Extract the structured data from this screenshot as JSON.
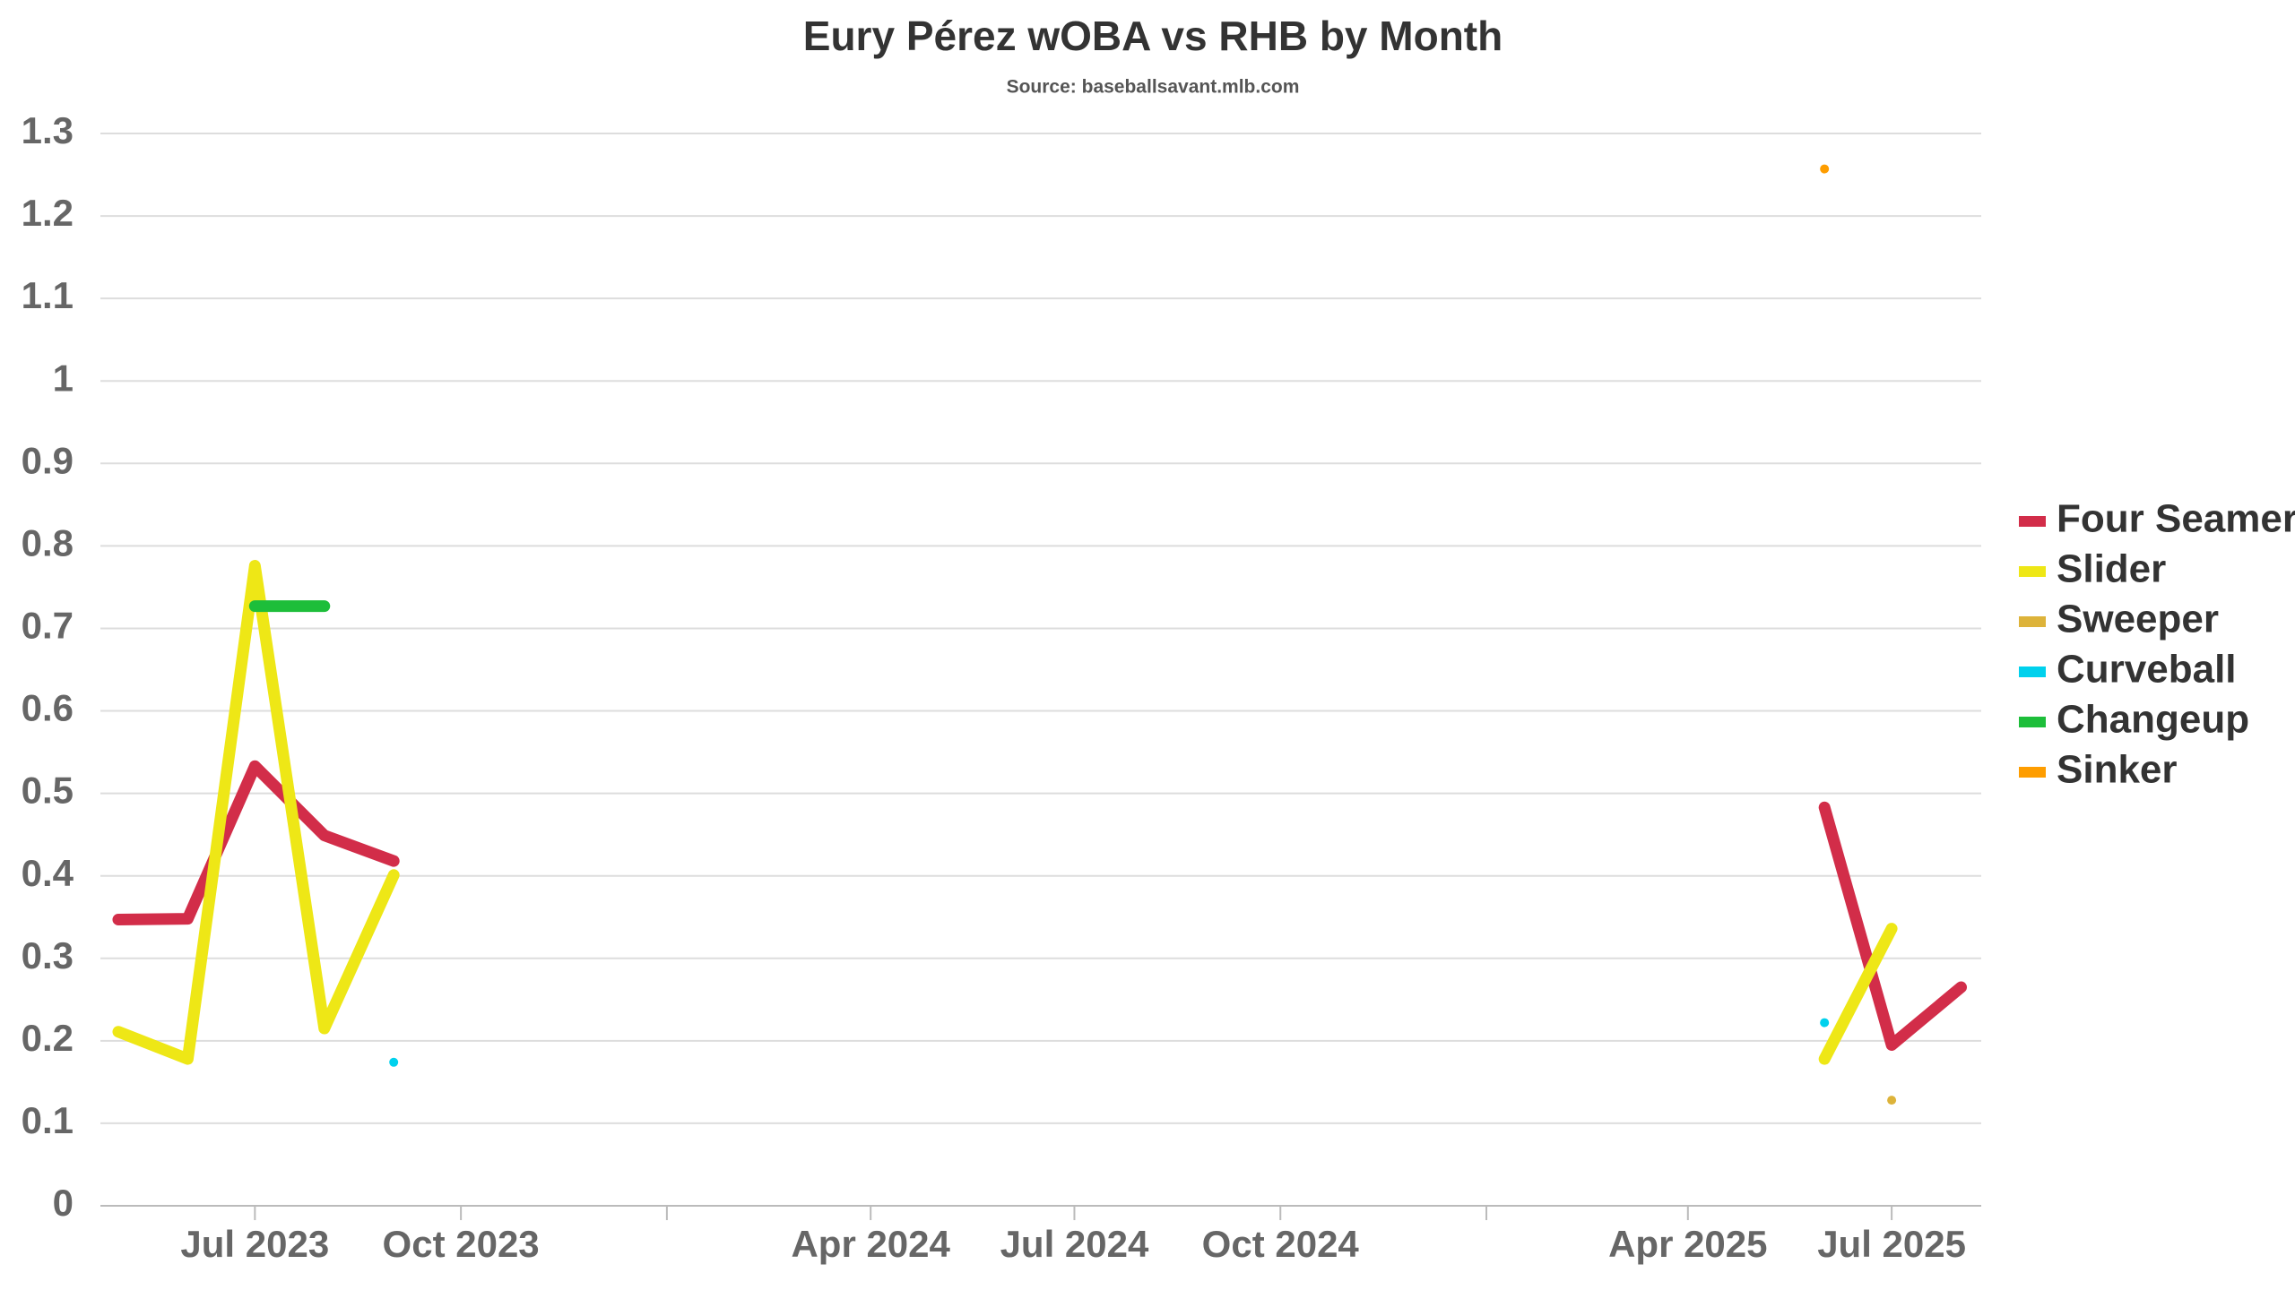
{
  "chart_data": {
    "type": "line",
    "title": "Eury Pérez wOBA vs RHB by Month",
    "subtitle": "Source: baseballsavant.mlb.com",
    "x": [
      "2023-05",
      "2023-06",
      "2023-07",
      "2023-08",
      "2023-09",
      "2025-06",
      "2025-07",
      "2025-08"
    ],
    "series": [
      {
        "name": "Four Seamer",
        "color": "#d22d49",
        "values": [
          0.347,
          0.348,
          0.533,
          0.449,
          0.418,
          0.483,
          0.195,
          0.265
        ]
      },
      {
        "name": "Slider",
        "color": "#eee716",
        "values": [
          0.211,
          0.178,
          0.776,
          0.215,
          0.401,
          0.178,
          0.336,
          null
        ]
      },
      {
        "name": "Sweeper",
        "color": "#ddb33a",
        "values": [
          null,
          null,
          null,
          null,
          null,
          null,
          0.128,
          null
        ]
      },
      {
        "name": "Curveball",
        "color": "#00d1ed",
        "values": [
          null,
          null,
          null,
          null,
          0.174,
          0.222,
          null,
          null
        ]
      },
      {
        "name": "Changeup",
        "color": "#1dbe3a",
        "values": [
          null,
          null,
          0.727,
          0.727,
          null,
          null,
          null,
          null
        ]
      },
      {
        "name": "Sinker",
        "color": "#fe9d00",
        "values": [
          null,
          null,
          null,
          null,
          null,
          1.257,
          null,
          null
        ]
      }
    ],
    "xlim": [
      "2023-04-23",
      "2025-08-10"
    ],
    "xticks": [
      {
        "value": "2023-07",
        "label": "Jul 2023"
      },
      {
        "value": "2023-10",
        "label": "Oct 2023"
      },
      {
        "value": "2024-01",
        "label": null
      },
      {
        "value": "2024-04",
        "label": "Apr 2024"
      },
      {
        "value": "2024-07",
        "label": "Jul 2024"
      },
      {
        "value": "2024-10",
        "label": "Oct 2024"
      },
      {
        "value": "2025-01",
        "label": null
      },
      {
        "value": "2025-04",
        "label": "Apr 2025"
      },
      {
        "value": "2025-07",
        "label": "Jul 2025"
      }
    ],
    "ylim": [
      0,
      1.3
    ],
    "yticks": [
      0,
      0.1,
      0.2,
      0.3,
      0.4,
      0.5,
      0.6,
      0.7,
      0.8,
      0.9,
      1,
      1.1,
      1.2,
      1.3
    ],
    "grid": true,
    "legend": "right"
  }
}
